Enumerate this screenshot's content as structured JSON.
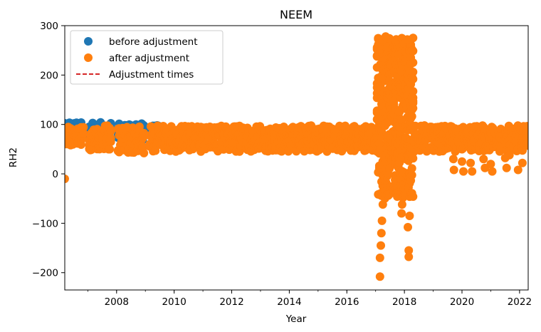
{
  "chart_data": {
    "type": "scatter",
    "title": "NEEM",
    "xlabel": "Year",
    "ylabel": "RH2",
    "xlim": [
      2006.2,
      2022.3
    ],
    "ylim": [
      -235,
      300
    ],
    "x_ticks": [
      2008,
      2010,
      2012,
      2014,
      2016,
      2018,
      2020,
      2022
    ],
    "x_tick_labels": [
      "2008",
      "2010",
      "2012",
      "2014",
      "2016",
      "2018",
      "2020",
      "2022"
    ],
    "y_ticks": [
      -200,
      -100,
      0,
      100,
      200,
      300
    ],
    "y_tick_labels": [
      "−200",
      "−100",
      "0",
      "100",
      "200",
      "300"
    ],
    "grid": false,
    "legend": {
      "placement": "top-left",
      "entries": [
        {
          "label": "before adjustment",
          "marker": "circle",
          "color": "#1f77b4"
        },
        {
          "label": "after adjustment",
          "marker": "circle",
          "color": "#ff7f0e"
        },
        {
          "label": "Adjustment times",
          "marker": "dashed-line",
          "color": "#d62728"
        }
      ]
    },
    "series": [
      {
        "name": "before adjustment",
        "color": "#1f77b4",
        "segments": [
          {
            "x_start": 2006.2,
            "x_end": 2006.85,
            "y_min": 75,
            "y_max": 104
          },
          {
            "x_start": 2007.05,
            "x_end": 2007.8,
            "y_min": 70,
            "y_max": 105
          },
          {
            "x_start": 2008.05,
            "x_end": 2008.95,
            "y_min": 68,
            "y_max": 102
          },
          {
            "x_start": 2009.15,
            "x_end": 2009.45,
            "y_min": 75,
            "y_max": 100
          }
        ]
      },
      {
        "name": "after adjustment",
        "color": "#ff7f0e",
        "segments": [
          {
            "x_start": 2006.2,
            "x_end": 2006.85,
            "y_min": 58,
            "y_max": 96
          },
          {
            "x_start": 2007.05,
            "x_end": 2007.8,
            "y_min": 48,
            "y_max": 98
          },
          {
            "x_start": 2008.05,
            "x_end": 2008.95,
            "y_min": 40,
            "y_max": 96
          },
          {
            "x_start": 2009.15,
            "x_end": 2017.05,
            "y_min": 45,
            "y_max": 98
          },
          {
            "x_start": 2017.05,
            "x_end": 2018.3,
            "y_min": -50,
            "y_max": 275
          },
          {
            "x_start": 2018.3,
            "x_end": 2022.3,
            "y_min": 45,
            "y_max": 98
          }
        ],
        "outliers": [
          {
            "x": 2006.2,
            "y": -10
          },
          {
            "x": 2017.15,
            "y": -208
          },
          {
            "x": 2017.15,
            "y": -170
          },
          {
            "x": 2017.18,
            "y": -145
          },
          {
            "x": 2017.2,
            "y": -120
          },
          {
            "x": 2017.22,
            "y": -95
          },
          {
            "x": 2017.25,
            "y": -62
          },
          {
            "x": 2017.9,
            "y": -80
          },
          {
            "x": 2017.92,
            "y": -62
          },
          {
            "x": 2018.15,
            "y": -155
          },
          {
            "x": 2018.15,
            "y": -168
          },
          {
            "x": 2018.12,
            "y": -108
          },
          {
            "x": 2018.18,
            "y": -85
          },
          {
            "x": 2017.35,
            "y": 278
          },
          {
            "x": 2018.1,
            "y": 272
          },
          {
            "x": 2019.7,
            "y": 30
          },
          {
            "x": 2019.72,
            "y": 8
          },
          {
            "x": 2020.0,
            "y": 25
          },
          {
            "x": 2020.05,
            "y": 5
          },
          {
            "x": 2020.3,
            "y": 22
          },
          {
            "x": 2020.35,
            "y": 5
          },
          {
            "x": 2020.75,
            "y": 30
          },
          {
            "x": 2020.8,
            "y": 12
          },
          {
            "x": 2021.0,
            "y": 20
          },
          {
            "x": 2021.05,
            "y": 5
          },
          {
            "x": 2021.5,
            "y": 32
          },
          {
            "x": 2021.55,
            "y": 12
          },
          {
            "x": 2021.65,
            "y": 38
          },
          {
            "x": 2021.95,
            "y": 8
          },
          {
            "x": 2022.1,
            "y": 22
          }
        ]
      }
    ]
  }
}
